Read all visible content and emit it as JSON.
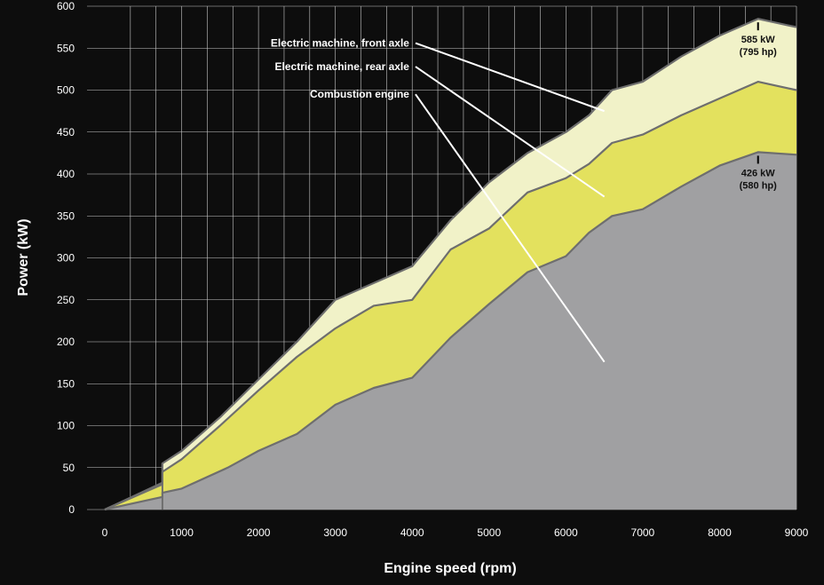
{
  "chart_data": {
    "type": "area",
    "title": "",
    "xlabel": "Engine speed (rpm)",
    "ylabel": "Power (kW)",
    "xlim": [
      0,
      9000
    ],
    "ylim": [
      0,
      600
    ],
    "x_ticks": [
      "0",
      "1000",
      "2000",
      "3000",
      "4000",
      "5000",
      "6000",
      "7000",
      "8000",
      "9000"
    ],
    "y_ticks": [
      "0",
      "50",
      "100",
      "150",
      "200",
      "250",
      "300",
      "350",
      "400",
      "450",
      "500",
      "550",
      "600"
    ],
    "grid": true,
    "stacked": true,
    "series": [
      {
        "name": "Combustion engine",
        "color": "#a0a0a2",
        "x": [
          0,
          750,
          750,
          1000,
          1600,
          2000,
          2500,
          3000,
          3500,
          4000,
          4500,
          5000,
          5500,
          6000,
          6300,
          6600,
          7000,
          7500,
          8000,
          8500,
          9000
        ],
        "y": [
          0,
          15,
          20,
          25,
          50,
          70,
          90,
          125,
          145,
          157,
          205,
          245,
          283,
          302,
          330,
          350,
          358,
          385,
          410,
          426,
          423
        ]
      },
      {
        "name": "Electric machine, rear axle",
        "color": "#e3e15e",
        "x": [
          0,
          750,
          750,
          1000,
          1500,
          2000,
          2500,
          3000,
          3500,
          4000,
          4500,
          5000,
          5500,
          6000,
          6300,
          6600,
          7000,
          7500,
          8000,
          8500,
          9000
        ],
        "y": [
          0,
          30,
          45,
          60,
          100,
          142,
          182,
          216,
          243,
          250,
          310,
          335,
          378,
          395,
          412,
          437,
          447,
          470,
          490,
          510,
          500
        ]
      },
      {
        "name": "Electric machine, front axle",
        "color": "#f1f2c8",
        "x": [
          0,
          750,
          750,
          1000,
          1500,
          2000,
          2500,
          3000,
          3500,
          4000,
          4500,
          5000,
          5500,
          6000,
          6300,
          6600,
          7000,
          7500,
          8000,
          8500,
          9000
        ],
        "y": [
          0,
          32,
          55,
          70,
          110,
          155,
          200,
          250,
          270,
          290,
          345,
          390,
          425,
          450,
          470,
          500,
          510,
          540,
          565,
          585,
          575
        ]
      }
    ],
    "annotations": [
      {
        "text_line1": "585 kW",
        "text_line2": "(795 hp)",
        "x": 8500,
        "y": 585
      },
      {
        "text_line1": "426 kW",
        "text_line2": "(580 hp)",
        "x": 8500,
        "y": 426
      }
    ],
    "leader_labels": [
      {
        "text": "Electric machine, front axle",
        "anchor_x": 3350,
        "anchor_y": 556,
        "target_x": 6500,
        "target_y": 475
      },
      {
        "text": "Electric machine, rear axle",
        "anchor_x": 3350,
        "anchor_y": 528,
        "target_x": 6500,
        "target_y": 373
      },
      {
        "text": "Combustion engine",
        "anchor_x": 3350,
        "anchor_y": 495,
        "target_x": 6500,
        "target_y": 176
      }
    ]
  }
}
